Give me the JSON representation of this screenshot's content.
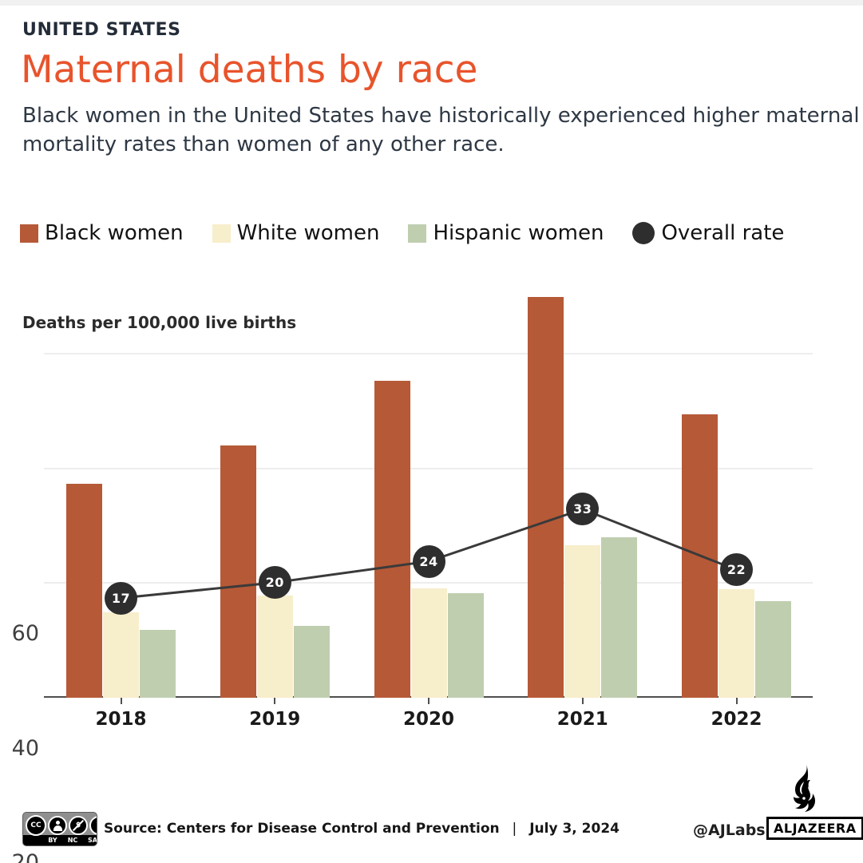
{
  "header": {
    "kicker": "UNITED STATES",
    "title": "Maternal deaths by race",
    "subtitle_line1": "Black women in the United States have historically experienced higher maternal",
    "subtitle_line2": "mortality rates than women of any other race."
  },
  "legend": {
    "items": [
      {
        "label": "Black women",
        "color": "#b65937",
        "shape": "square"
      },
      {
        "label": "White women",
        "color": "#f7eecb",
        "shape": "square"
      },
      {
        "label": "Hispanic women",
        "color": "#c0ceb0",
        "shape": "square"
      },
      {
        "label": "Overall rate",
        "color": "#2e2e2e",
        "shape": "circle"
      }
    ]
  },
  "chart_data": {
    "type": "bar",
    "ylabel": "Deaths per 100,000 live births",
    "categories": [
      "2018",
      "2019",
      "2020",
      "2021",
      "2022"
    ],
    "series": [
      {
        "name": "Black women",
        "type": "bar",
        "color": "#b65937",
        "values": [
          37.3,
          44.0,
          55.3,
          69.9,
          49.5
        ]
      },
      {
        "name": "White women",
        "type": "bar",
        "color": "#f7eecb",
        "values": [
          14.9,
          17.9,
          19.1,
          26.6,
          19.0
        ]
      },
      {
        "name": "Hispanic women",
        "type": "bar",
        "color": "#c0ceb0",
        "values": [
          11.8,
          12.6,
          18.2,
          28.0,
          16.9
        ]
      },
      {
        "name": "Overall rate",
        "type": "line",
        "color": "#3a3a3a",
        "marker_color": "#2e2e2e",
        "values": [
          17.4,
          20.1,
          23.8,
          32.9,
          22.3
        ],
        "labels": [
          "17",
          "20",
          "24",
          "33",
          "22"
        ]
      }
    ],
    "yticks": [
      20,
      40,
      60
    ],
    "ylim": [
      0,
      71.6
    ],
    "grid": true,
    "legend_position": "top"
  },
  "footer": {
    "license": "CC BY-NC-SA",
    "cc_labels": [
      "BY",
      "NC",
      "SA"
    ],
    "source_label": "Source:",
    "source": "Centers for Disease Control and Prevention",
    "divider": "|",
    "date": "July 3, 2024",
    "credit": "@AJLabs",
    "brand": "ALJAZEERA"
  }
}
